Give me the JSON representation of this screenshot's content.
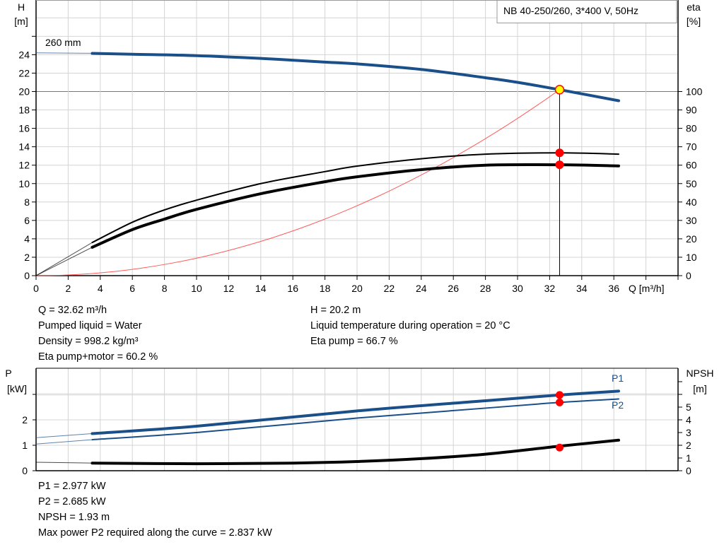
{
  "chart_data": [
    {
      "type": "line",
      "title": "NB 40-250/260, 3*400 V, 50Hz",
      "xlabel": "Q [m³/h]",
      "ylabel_left": [
        "H",
        "[m]"
      ],
      "ylabel_right": [
        "eta",
        "[%]"
      ],
      "xlim": [
        0,
        40
      ],
      "ylim": [
        0,
        30
      ],
      "ylim_right": [
        0,
        150
      ],
      "xticks": [
        "0",
        "2",
        "4",
        "6",
        "8",
        "10",
        "12",
        "14",
        "16",
        "18",
        "20",
        "22",
        "24",
        "26",
        "28",
        "30",
        "32",
        "34",
        "36"
      ],
      "yticks": [
        "0",
        "2",
        "4",
        "6",
        "8",
        "10",
        "12",
        "14",
        "16",
        "18",
        "20",
        "22",
        "24"
      ],
      "yticks_right": [
        "0",
        "10",
        "20",
        "30",
        "40",
        "50",
        "60",
        "70",
        "80",
        "90",
        "100"
      ],
      "grid": true,
      "curve_label": "260 mm",
      "colors": {
        "head": "#1a4f8a",
        "efficiency": "#000000",
        "system": "#ff5a5a",
        "marker": "#ff0000",
        "duty_marker": "#ffff00"
      },
      "series": [
        {
          "id": "head",
          "axis": "left",
          "x": [
            0,
            3.5,
            6,
            10,
            14,
            18,
            20,
            24,
            28,
            30,
            32.62,
            36.3
          ],
          "y": [
            24.2,
            24.15,
            24.05,
            23.9,
            23.6,
            23.2,
            23.0,
            22.4,
            21.5,
            21.0,
            20.2,
            19.0
          ]
        },
        {
          "id": "eta-pump",
          "axis": "right",
          "x": [
            0,
            3.5,
            6,
            8,
            10,
            14,
            18,
            20,
            24,
            28,
            32.62,
            36.3
          ],
          "y": [
            0,
            18,
            29,
            35.7,
            41,
            50,
            56.5,
            59.5,
            63.5,
            66,
            66.7,
            66
          ]
        },
        {
          "id": "eta-pump-motor",
          "axis": "right",
          "x": [
            0,
            3.5,
            6,
            8,
            10,
            14,
            18,
            20,
            24,
            28,
            32.62,
            36.3
          ],
          "y": [
            0,
            15.4,
            25,
            30.7,
            36,
            44.5,
            51,
            53.7,
            57.6,
            60,
            60.2,
            59.6
          ]
        },
        {
          "id": "system-curve",
          "axis": "left",
          "type": "quadratic",
          "k": 0.01898,
          "x_end": 32.62
        }
      ],
      "duty_point": {
        "Q": 32.62,
        "H": 20.2,
        "eta_pump": 66.7,
        "eta_pump_motor": 60.2
      }
    },
    {
      "type": "line",
      "ylabel_left": [
        "P",
        "[kW]"
      ],
      "ylabel_right": [
        "NPSH",
        "[m]"
      ],
      "xlim": [
        0,
        40
      ],
      "ylim": [
        0,
        4
      ],
      "ylim_right": [
        0,
        8
      ],
      "yticks": [
        "0",
        "1",
        "2"
      ],
      "yticks_right": [
        "0",
        "1",
        "2",
        "3",
        "4",
        "5"
      ],
      "grid": true,
      "series": [
        {
          "id": "P1",
          "name": "P1",
          "axis": "left",
          "x": [
            0,
            3.5,
            10,
            20,
            28,
            32.62,
            36.3
          ],
          "y": [
            1.3,
            1.46,
            1.75,
            2.35,
            2.75,
            2.977,
            3.13
          ]
        },
        {
          "id": "P2",
          "name": "P2",
          "axis": "left",
          "x": [
            0,
            3.5,
            10,
            20,
            28,
            32.62,
            36.3
          ],
          "y": [
            1.05,
            1.22,
            1.5,
            2.07,
            2.46,
            2.685,
            2.82
          ]
        },
        {
          "id": "NPSH",
          "axis": "right",
          "x": [
            0,
            3.5,
            10,
            16,
            20,
            24,
            28,
            32.62,
            36.3
          ],
          "y": [
            0.67,
            0.6,
            0.55,
            0.6,
            0.72,
            0.95,
            1.3,
            1.93,
            2.4
          ]
        }
      ],
      "duty_point": {
        "Q": 32.62,
        "P1": 2.977,
        "P2": 2.685,
        "NPSH": 1.93
      }
    }
  ],
  "info_top_left": [
    "Q = 32.62 m³/h",
    "Pumped liquid = Water",
    "Density = 998.2 kg/m³",
    "Eta pump+motor = 60.2 %"
  ],
  "info_top_right": [
    "H = 20.2 m",
    "Liquid temperature during operation = 20 °C",
    "Eta pump = 66.7 %"
  ],
  "info_bottom": [
    "P1 = 2.977 kW",
    "P2 = 2.685 kW",
    "NPSH = 1.93 m",
    "Max power P2 required along the curve = 2.837 kW"
  ]
}
